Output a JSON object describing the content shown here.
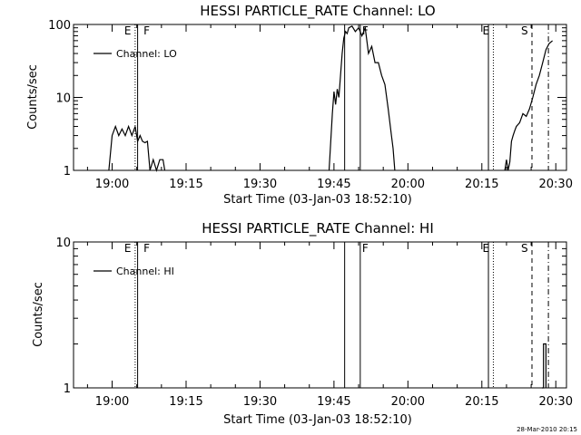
{
  "footer": {
    "timestamp": "28-Mar-2010 20:15"
  },
  "chart_data": [
    {
      "type": "line",
      "title": "HESSI PARTICLE_RATE Channel: LO",
      "xlabel": "Start Time (03-Jan-03 18:52:10)",
      "ylabel": "Counts/sec",
      "y_scale": "log",
      "ylim": [
        1,
        100
      ],
      "y_ticks": [
        1,
        10,
        100
      ],
      "y_tick_labels": [
        "1",
        "10",
        "100"
      ],
      "x_time_range": [
        "18:52:10",
        "20:32:10"
      ],
      "x_ticks": [
        "19:00",
        "19:15",
        "19:30",
        "19:45",
        "20:00",
        "20:15",
        "20:30"
      ],
      "legend": {
        "position": "top-left",
        "entries": [
          "Channel: LO"
        ]
      },
      "series": [
        {
          "name": "Channel: LO",
          "segments": [
            {
              "t": [
                "18:59:20",
                "19:00:00",
                "19:00:40",
                "19:01:20",
                "19:02:00",
                "19:02:40",
                "19:03:20",
                "19:04:00",
                "19:04:40",
                "19:05:10",
                "19:05:40",
                "19:06:10",
                "19:06:40",
                "19:07:10",
                "19:07:40",
                "19:08:20",
                "19:09:00",
                "19:09:40",
                "19:10:20",
                "19:10:40"
              ],
              "v": [
                1.0,
                3.0,
                4.0,
                3.0,
                3.7,
                3.0,
                4.0,
                3.0,
                4.0,
                2.5,
                3.0,
                2.5,
                2.4,
                2.5,
                1.0,
                1.4,
                1.0,
                1.4,
                1.4,
                1.0
              ]
            },
            {
              "t": [
                "19:44:00",
                "19:44:40",
                "19:45:00",
                "19:45:20",
                "19:45:40",
                "19:46:00",
                "19:46:20",
                "19:46:40",
                "19:47:00",
                "19:47:20",
                "19:47:40",
                "19:48:00",
                "19:48:40",
                "19:49:20",
                "19:50:00",
                "19:50:40",
                "19:51:20",
                "19:52:00",
                "19:52:40",
                "19:53:20",
                "19:54:00",
                "19:54:40",
                "19:55:20",
                "19:56:00",
                "19:56:40",
                "19:57:00",
                "19:57:20"
              ],
              "v": [
                1.0,
                6.0,
                12.0,
                8.0,
                13.0,
                10.0,
                20.0,
                40.0,
                65.0,
                80.0,
                75.0,
                90.0,
                95.0,
                80.0,
                90.0,
                70.0,
                90.0,
                40.0,
                50.0,
                30.0,
                30.0,
                20.0,
                15.0,
                7.0,
                3.0,
                2.0,
                1.0
              ]
            },
            {
              "t": [
                "20:19:40",
                "20:20:00",
                "20:20:20",
                "20:20:40",
                "20:21:00",
                "20:21:20",
                "20:21:40",
                "20:22:00",
                "20:22:40",
                "20:23:20",
                "20:24:00",
                "20:24:40",
                "20:25:20",
                "20:26:00",
                "20:26:40",
                "20:27:20",
                "20:28:00",
                "20:28:40",
                "20:29:20"
              ],
              "v": [
                1.0,
                1.4,
                1.0,
                1.3,
                2.5,
                3.0,
                3.5,
                4.0,
                4.5,
                6.0,
                5.5,
                7.0,
                10.0,
                15.0,
                20.0,
                30.0,
                45.0,
                55.0,
                60.0
              ]
            }
          ]
        }
      ],
      "markers": [
        {
          "kind": "solid",
          "time": "19:05:10"
        },
        {
          "kind": "dotted",
          "time": "19:04:40",
          "label": "E"
        },
        {
          "kind": "text",
          "time": "19:06:00",
          "label": "F"
        },
        {
          "kind": "solid",
          "time": "19:47:10"
        },
        {
          "kind": "solid",
          "time": "19:50:20",
          "label": "F"
        },
        {
          "kind": "solid",
          "time": "20:16:20"
        },
        {
          "kind": "dotted",
          "time": "20:17:20",
          "label": "E"
        },
        {
          "kind": "dashed",
          "time": "20:25:10",
          "label": "S"
        },
        {
          "kind": "dashdot",
          "time": "20:28:30"
        }
      ]
    },
    {
      "type": "line",
      "title": "HESSI PARTICLE_RATE Channel: HI",
      "xlabel": "Start Time (03-Jan-03 18:52:10)",
      "ylabel": "Counts/sec",
      "y_scale": "log",
      "ylim": [
        1,
        10
      ],
      "y_ticks": [
        1,
        10
      ],
      "y_tick_labels": [
        "1",
        "10"
      ],
      "x_time_range": [
        "18:52:10",
        "20:32:10"
      ],
      "x_ticks": [
        "19:00",
        "19:15",
        "19:30",
        "19:45",
        "20:00",
        "20:15",
        "20:30"
      ],
      "legend": {
        "position": "top-left",
        "entries": [
          "Channel: HI"
        ]
      },
      "series": [
        {
          "name": "Channel: HI",
          "segments": [
            {
              "t": [
                "20:27:10",
                "20:27:30",
                "20:27:30",
                "20:28:00",
                "20:28:00"
              ],
              "v": [
                1.0,
                1.0,
                2.0,
                2.0,
                1.0
              ]
            }
          ]
        }
      ],
      "markers": [
        {
          "kind": "solid",
          "time": "19:05:10"
        },
        {
          "kind": "dotted",
          "time": "19:04:40",
          "label": "E"
        },
        {
          "kind": "text",
          "time": "19:06:00",
          "label": "F"
        },
        {
          "kind": "solid",
          "time": "19:47:10"
        },
        {
          "kind": "solid",
          "time": "19:50:20",
          "label": "F"
        },
        {
          "kind": "solid",
          "time": "20:16:20"
        },
        {
          "kind": "dotted",
          "time": "20:17:20",
          "label": "E"
        },
        {
          "kind": "dashed",
          "time": "20:25:10",
          "label": "S"
        },
        {
          "kind": "dashdot",
          "time": "20:28:30"
        }
      ]
    }
  ]
}
